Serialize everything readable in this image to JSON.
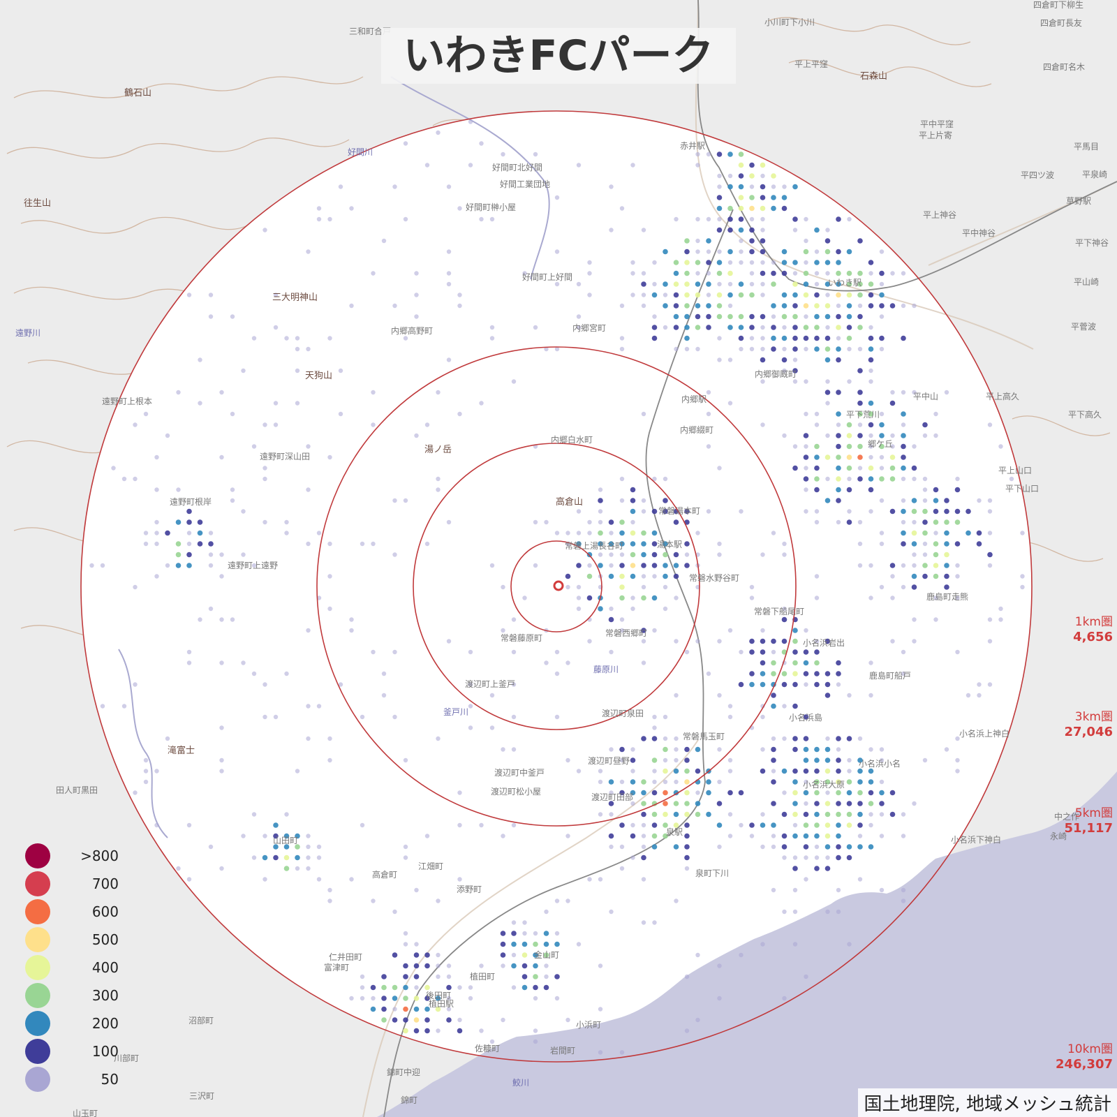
{
  "title": "いわきFCパーク",
  "credit": "国土地理院, 地域メッシュ統計",
  "center_marker": "venue-marker-icon",
  "rings": [
    {
      "radius_km": 1,
      "label": "1km圏",
      "population": "4,656"
    },
    {
      "radius_km": 3,
      "label": "3km圏",
      "population": "27,046"
    },
    {
      "radius_km": 5,
      "label": "5km圏",
      "population": "51,117"
    },
    {
      "radius_km": 10,
      "label": "10km圏",
      "population": "246,307"
    }
  ],
  "legend": [
    {
      "label": ">800",
      "color": "#9e0142"
    },
    {
      "label": "700",
      "color": "#d53e4f"
    },
    {
      "label": "600",
      "color": "#f46d43"
    },
    {
      "label": "500",
      "color": "#fee08b"
    },
    {
      "label": "400",
      "color": "#e6f598"
    },
    {
      "label": "300",
      "color": "#99d594"
    },
    {
      "label": "200",
      "color": "#3288bd"
    },
    {
      "label": "100",
      "color": "#3f3d99"
    },
    {
      "label": "50",
      "color": "#a9a6d3"
    }
  ],
  "colors": {
    "ring": "#c0393b",
    "sea": "#c9c9e0",
    "land": "#ececec",
    "contour": "#c9a58a",
    "road": "#ffffff",
    "rail": "#777777"
  },
  "place_labels": {
    "stations": [
      "赤井駅",
      "いわき駅",
      "内郷駅",
      "湯本駅",
      "泉駅",
      "植田駅",
      "草野駅"
    ],
    "mountains": [
      "鶴石山",
      "往生山",
      "三大明神山",
      "天狗山",
      "湯ノ岳",
      "高倉山",
      "石森山",
      "滝富士"
    ],
    "rivers": [
      "好間川",
      "遠野川",
      "藤原川",
      "釜戸川",
      "鮫川"
    ],
    "towns": [
      "小川町下小川",
      "四倉町下柳生",
      "四倉町長友",
      "四倉町名木",
      "平上平窪",
      "平中平窪",
      "平上片寄",
      "平四ツ波",
      "平馬目",
      "平泉崎",
      "平上神谷",
      "平中神谷",
      "平下神谷",
      "平山崎",
      "平菅波",
      "平上高久",
      "平下高久",
      "平上山口",
      "平下山口",
      "好間町北好間",
      "好間工業団地",
      "好間町榊小屋",
      "好間町上好間",
      "内郷高野町",
      "内郷宮町",
      "内郷御厩町",
      "内郷綴町",
      "内郷白水町",
      "常磐湯本町",
      "常磐上湯長谷町",
      "常磐藤原町",
      "常磐水野谷町",
      "常磐下船尾町",
      "常磐西郷町",
      "常磐馬玉町",
      "渡辺町上釜戸",
      "渡辺町泉田",
      "渡辺町昼野",
      "渡辺町中釜戸",
      "渡辺町松小屋",
      "渡辺町田部",
      "遠野町上根本",
      "遠野町深山田",
      "遠野町根岸",
      "遠野町上遠野",
      "三和町合戸",
      "田人町黒田",
      "小名浜岩出",
      "小名浜島",
      "鹿島町船戸",
      "鹿島町走熊",
      "小名浜上神白",
      "小名浜下神白",
      "小名浜大原",
      "小名浜小名",
      "泉町下川",
      "錦町中迎",
      "錦町",
      "岩間町",
      "小浜町",
      "江畑町",
      "添野町",
      "高倉町",
      "山田町",
      "沼部町",
      "川部町",
      "三沢町",
      "山玉町",
      "佐糠町",
      "金山町",
      "植田町",
      "後田町",
      "富津町",
      "仁井田町",
      "平下荒川",
      "中之作",
      "永崎",
      "平中山",
      "郷ケ丘"
    ]
  }
}
